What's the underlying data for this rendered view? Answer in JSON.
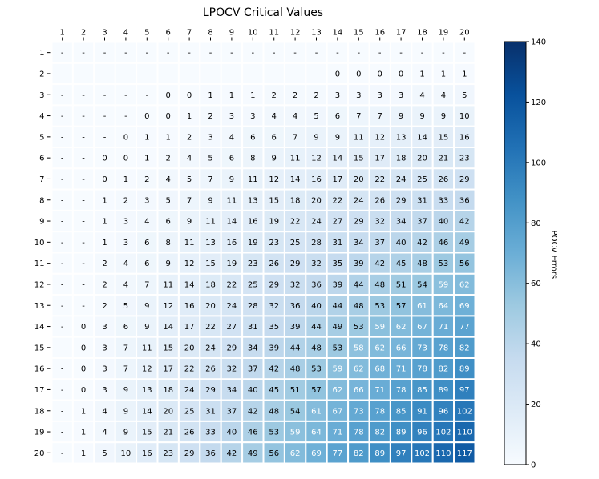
{
  "chart_data": {
    "type": "heatmap",
    "title": "LPOCV Critical Values",
    "x_labels": [
      "1",
      "2",
      "3",
      "4",
      "5",
      "6",
      "7",
      "8",
      "9",
      "10",
      "11",
      "12",
      "13",
      "14",
      "15",
      "16",
      "17",
      "18",
      "19",
      "20"
    ],
    "y_labels": [
      "1",
      "2",
      "3",
      "4",
      "5",
      "6",
      "7",
      "8",
      "9",
      "10",
      "11",
      "12",
      "13",
      "14",
      "15",
      "16",
      "17",
      "18",
      "19",
      "20"
    ],
    "values": [
      [
        "-",
        "-",
        "-",
        "-",
        "-",
        "-",
        "-",
        "-",
        "-",
        "-",
        "-",
        "-",
        "-",
        "-",
        "-",
        "-",
        "-",
        "-",
        "-",
        "-"
      ],
      [
        "-",
        "-",
        "-",
        "-",
        "-",
        "-",
        "-",
        "-",
        "-",
        "-",
        "-",
        "-",
        "-",
        "0",
        "0",
        "0",
        "0",
        "1",
        "1",
        "1"
      ],
      [
        "-",
        "-",
        "-",
        "-",
        "-",
        "0",
        "0",
        "1",
        "1",
        "1",
        "2",
        "2",
        "2",
        "3",
        "3",
        "3",
        "3",
        "4",
        "4",
        "5"
      ],
      [
        "-",
        "-",
        "-",
        "-",
        "0",
        "0",
        "1",
        "2",
        "3",
        "3",
        "4",
        "4",
        "5",
        "6",
        "7",
        "7",
        "9",
        "9",
        "9",
        "10"
      ],
      [
        "-",
        "-",
        "-",
        "0",
        "1",
        "1",
        "2",
        "3",
        "4",
        "6",
        "6",
        "7",
        "9",
        "9",
        "11",
        "12",
        "13",
        "14",
        "15",
        "16"
      ],
      [
        "-",
        "-",
        "0",
        "0",
        "1",
        "2",
        "4",
        "5",
        "6",
        "8",
        "9",
        "11",
        "12",
        "14",
        "15",
        "17",
        "18",
        "20",
        "21",
        "23"
      ],
      [
        "-",
        "-",
        "0",
        "1",
        "2",
        "4",
        "5",
        "7",
        "9",
        "11",
        "12",
        "14",
        "16",
        "17",
        "20",
        "22",
        "24",
        "25",
        "26",
        "29"
      ],
      [
        "-",
        "-",
        "1",
        "2",
        "3",
        "5",
        "7",
        "9",
        "11",
        "13",
        "15",
        "18",
        "20",
        "22",
        "24",
        "26",
        "29",
        "31",
        "33",
        "36"
      ],
      [
        "-",
        "-",
        "1",
        "3",
        "4",
        "6",
        "9",
        "11",
        "14",
        "16",
        "19",
        "22",
        "24",
        "27",
        "29",
        "32",
        "34",
        "37",
        "40",
        "42"
      ],
      [
        "-",
        "-",
        "1",
        "3",
        "6",
        "8",
        "11",
        "13",
        "16",
        "19",
        "23",
        "25",
        "28",
        "31",
        "34",
        "37",
        "40",
        "42",
        "46",
        "49"
      ],
      [
        "-",
        "-",
        "2",
        "4",
        "6",
        "9",
        "12",
        "15",
        "19",
        "23",
        "26",
        "29",
        "32",
        "35",
        "39",
        "42",
        "45",
        "48",
        "53",
        "56"
      ],
      [
        "-",
        "-",
        "2",
        "4",
        "7",
        "11",
        "14",
        "18",
        "22",
        "25",
        "29",
        "32",
        "36",
        "39",
        "44",
        "48",
        "51",
        "54",
        "59",
        "62"
      ],
      [
        "-",
        "-",
        "2",
        "5",
        "9",
        "12",
        "16",
        "20",
        "24",
        "28",
        "32",
        "36",
        "40",
        "44",
        "48",
        "53",
        "57",
        "61",
        "64",
        "69"
      ],
      [
        "-",
        "0",
        "3",
        "6",
        "9",
        "14",
        "17",
        "22",
        "27",
        "31",
        "35",
        "39",
        "44",
        "49",
        "53",
        "59",
        "62",
        "67",
        "71",
        "77"
      ],
      [
        "-",
        "0",
        "3",
        "7",
        "11",
        "15",
        "20",
        "24",
        "29",
        "34",
        "39",
        "44",
        "48",
        "53",
        "58",
        "62",
        "66",
        "73",
        "78",
        "82"
      ],
      [
        "-",
        "0",
        "3",
        "7",
        "12",
        "17",
        "22",
        "26",
        "32",
        "37",
        "42",
        "48",
        "53",
        "59",
        "62",
        "68",
        "71",
        "78",
        "82",
        "89"
      ],
      [
        "-",
        "0",
        "3",
        "9",
        "13",
        "18",
        "24",
        "29",
        "34",
        "40",
        "45",
        "51",
        "57",
        "62",
        "66",
        "71",
        "78",
        "85",
        "89",
        "97"
      ],
      [
        "-",
        "1",
        "4",
        "9",
        "14",
        "20",
        "25",
        "31",
        "37",
        "42",
        "48",
        "54",
        "61",
        "67",
        "73",
        "78",
        "85",
        "91",
        "96",
        "102"
      ],
      [
        "-",
        "1",
        "4",
        "9",
        "15",
        "21",
        "26",
        "33",
        "40",
        "46",
        "53",
        "59",
        "64",
        "71",
        "78",
        "82",
        "89",
        "96",
        "102",
        "110"
      ],
      [
        "-",
        "1",
        "5",
        "10",
        "16",
        "23",
        "29",
        "36",
        "42",
        "49",
        "56",
        "62",
        "69",
        "77",
        "82",
        "89",
        "97",
        "102",
        "110",
        "117"
      ]
    ],
    "colorbar": {
      "label": "LPOCV Errors",
      "min": 0,
      "max": 140,
      "ticks": [
        "0",
        "20",
        "40",
        "60",
        "80",
        "100",
        "120",
        "140"
      ],
      "colormap": "Blues"
    },
    "missing_fill": "#f7fbff",
    "cell_border": "#ffffff",
    "text_color_dark": "#000000",
    "text_color_light": "#ffffff"
  }
}
